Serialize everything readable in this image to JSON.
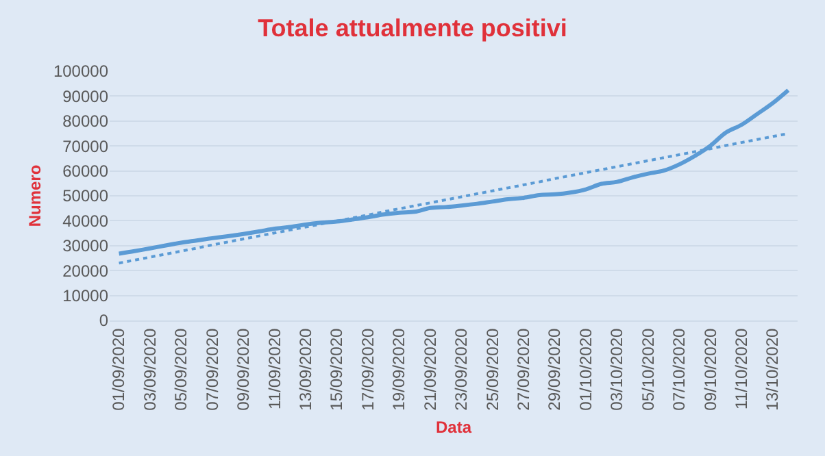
{
  "chart_data": {
    "type": "line",
    "title": "Totale attualmente positivi",
    "xlabel": "Data",
    "ylabel": "Numero",
    "categories": [
      "01/09/2020",
      null,
      "03/09/2020",
      null,
      "05/09/2020",
      null,
      "07/09/2020",
      null,
      "09/09/2020",
      null,
      "11/09/2020",
      null,
      "13/09/2020",
      null,
      "15/09/2020",
      null,
      "17/09/2020",
      null,
      "19/09/2020",
      null,
      "21/09/2020",
      null,
      "23/09/2020",
      null,
      "25/09/2020",
      null,
      "27/09/2020",
      null,
      "29/09/2020",
      null,
      "01/10/2020",
      null,
      "03/10/2020",
      null,
      "05/10/2020",
      null,
      "07/10/2020",
      null,
      "09/10/2020",
      null,
      "11/10/2020",
      null,
      "13/10/2020",
      null
    ],
    "series": [
      {
        "color": "#5b9bd5",
        "line_style": "solid",
        "values": [
          26800,
          27800,
          28900,
          30100,
          31200,
          32100,
          33000,
          33800,
          34700,
          35700,
          36800,
          37500,
          38500,
          39200,
          39700,
          40500,
          41400,
          42500,
          43200,
          43600,
          45100,
          45500,
          46100,
          46800,
          47700,
          48600,
          49200,
          50300,
          50600,
          51300,
          52600,
          54800,
          55600,
          57400,
          58900,
          60100,
          62600,
          66000,
          70100,
          75400,
          78500,
          82800,
          87200,
          92400
        ]
      },
      {
        "color": "#5b9bd5",
        "line_style": "dotted",
        "values": [
          23000,
          24200,
          25400,
          26600,
          27800,
          29000,
          30300,
          31500,
          32700,
          33900,
          35100,
          36300,
          37500,
          38700,
          39900,
          41100,
          42300,
          43600,
          44800,
          46000,
          47200,
          48400,
          49600,
          50800,
          52000,
          53200,
          54400,
          55600,
          56900,
          58100,
          59300,
          60500,
          61700,
          62900,
          64100,
          65300,
          66500,
          67700,
          68900,
          70200,
          71400,
          72600,
          73800,
          75000
        ]
      }
    ],
    "ylim": [
      0,
      100000
    ],
    "yticks": [
      0,
      10000,
      20000,
      30000,
      40000,
      50000,
      60000,
      70000,
      80000,
      90000,
      100000
    ],
    "grid": "y"
  }
}
